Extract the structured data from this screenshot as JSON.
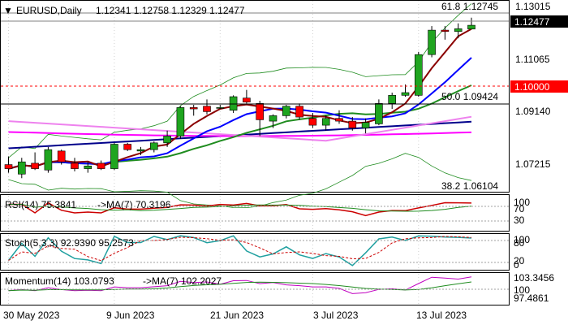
{
  "colors": {
    "background": "#ffffff",
    "grid": "#c8c8c8",
    "bull": "#1fa51f",
    "bear": "#ff0000",
    "sma_short": "#8b0000",
    "sma_med": "#0000ff",
    "sma_long": "#00008b",
    "sma_pink": "#ee82ee",
    "sma_magenta": "#ff00ff",
    "sma_green": "#1f8c1f",
    "bollinger": "#1f8c1f",
    "resistance": "#ff0000"
  },
  "main": {
    "title": "EURUSD,Daily",
    "ohlc": "1.12341 1.12758 1.12329 1.12477",
    "price_labels": [
      "1.13015",
      "1.11065",
      "1.09140",
      "1.07215"
    ],
    "current_price": "1.12477",
    "resistance_price": "1.10000",
    "fib_high": "61.8 1.12745",
    "fib_mid": "50.0 1.09424",
    "fib_low": "38.2 1.06104"
  },
  "rsi": {
    "label": "RSI(14) 75.3841",
    "ma_label": "->MA(7) 70.3196",
    "levels": [
      "100",
      "70",
      "30"
    ]
  },
  "stoch": {
    "label": "Stoch(5,3,3) 92.9390 95.2573",
    "levels": [
      "100",
      "80",
      "20",
      "0"
    ]
  },
  "momentum": {
    "label": "Momentum(14) 103.0793",
    "ma_label": "->MA(7) 102.2027",
    "levels": [
      "103.3456",
      "100",
      "97.4861"
    ]
  },
  "x_axis": {
    "labels": [
      "30 May 2023",
      "9 Jun 2023",
      "21 Jun 2023",
      "3 Jul 2023",
      "13 Jul 2023"
    ]
  },
  "chart_data": {
    "type": "candlestick",
    "title": "EURUSD,Daily",
    "candles": [
      {
        "o": 1.0735,
        "h": 1.0765,
        "l": 1.0705,
        "c": 1.072
      },
      {
        "o": 1.07,
        "h": 1.076,
        "l": 1.0685,
        "c": 1.0745
      },
      {
        "o": 1.074,
        "h": 1.078,
        "l": 1.0715,
        "c": 1.072
      },
      {
        "o": 1.0715,
        "h": 1.08,
        "l": 1.0705,
        "c": 1.079
      },
      {
        "o": 1.0785,
        "h": 1.079,
        "l": 1.0735,
        "c": 1.0745
      },
      {
        "o": 1.074,
        "h": 1.076,
        "l": 1.071,
        "c": 1.072
      },
      {
        "o": 1.072,
        "h": 1.0745,
        "l": 1.0705,
        "c": 1.073
      },
      {
        "o": 1.074,
        "h": 1.075,
        "l": 1.0715,
        "c": 1.072
      },
      {
        "o": 1.072,
        "h": 1.0815,
        "l": 1.0715,
        "c": 1.081
      },
      {
        "o": 1.081,
        "h": 1.0815,
        "l": 1.0785,
        "c": 1.079
      },
      {
        "o": 1.0785,
        "h": 1.08,
        "l": 1.077,
        "c": 1.079
      },
      {
        "o": 1.079,
        "h": 1.082,
        "l": 1.078,
        "c": 1.0815
      },
      {
        "o": 1.0815,
        "h": 1.086,
        "l": 1.08,
        "c": 1.084
      },
      {
        "o": 1.084,
        "h": 1.095,
        "l": 1.083,
        "c": 1.0945
      },
      {
        "o": 1.0945,
        "h": 1.0955,
        "l": 1.0915,
        "c": 1.094
      },
      {
        "o": 1.095,
        "h": 1.0975,
        "l": 1.092,
        "c": 1.093
      },
      {
        "o": 1.0945,
        "h": 1.0955,
        "l": 1.094,
        "c": 1.0945
      },
      {
        "o": 1.0935,
        "h": 1.099,
        "l": 1.0925,
        "c": 1.0985
      },
      {
        "o": 1.098,
        "h": 1.101,
        "l": 1.096,
        "c": 1.0965
      },
      {
        "o": 1.096,
        "h": 1.097,
        "l": 1.084,
        "c": 1.09
      },
      {
        "o": 1.0895,
        "h": 1.092,
        "l": 1.087,
        "c": 1.0915
      },
      {
        "o": 1.0915,
        "h": 1.0955,
        "l": 1.0905,
        "c": 1.095
      },
      {
        "o": 1.095,
        "h": 1.096,
        "l": 1.09,
        "c": 1.091
      },
      {
        "o": 1.0905,
        "h": 1.0925,
        "l": 1.087,
        "c": 1.088
      },
      {
        "o": 1.088,
        "h": 1.0915,
        "l": 1.086,
        "c": 1.0905
      },
      {
        "o": 1.0905,
        "h": 1.0935,
        "l": 1.0885,
        "c": 1.0895
      },
      {
        "o": 1.0895,
        "h": 1.091,
        "l": 1.086,
        "c": 1.087
      },
      {
        "o": 1.087,
        "h": 1.0905,
        "l": 1.085,
        "c": 1.089
      },
      {
        "o": 1.0885,
        "h": 1.0975,
        "l": 1.088,
        "c": 1.096
      },
      {
        "o": 1.096,
        "h": 1.1,
        "l": 1.094,
        "c": 1.099
      },
      {
        "o": 1.099,
        "h": 1.103,
        "l": 1.0985,
        "c": 1.1
      },
      {
        "o": 1.099,
        "h": 1.115,
        "l": 1.0985,
        "c": 1.114
      },
      {
        "o": 1.114,
        "h": 1.1245,
        "l": 1.113,
        "c": 1.123
      },
      {
        "o": 1.123,
        "h": 1.1245,
        "l": 1.1195,
        "c": 1.1225
      },
      {
        "o": 1.1225,
        "h": 1.1255,
        "l": 1.12,
        "c": 1.1235
      },
      {
        "o": 1.1234,
        "h": 1.1276,
        "l": 1.1233,
        "c": 1.1248
      }
    ],
    "price_ticks": [
      1.13015,
      1.11065,
      1.0914,
      1.07215
    ],
    "ylim": [
      1.0635,
      1.1335
    ]
  }
}
